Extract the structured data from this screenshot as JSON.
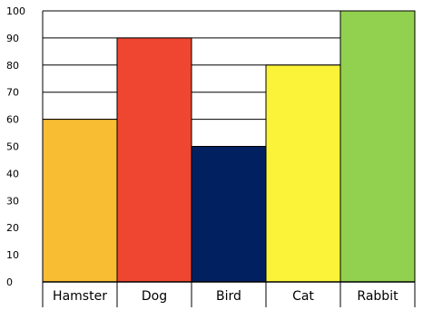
{
  "chart_data": {
    "type": "bar",
    "categories": [
      "Hamster",
      "Dog",
      "Bird",
      "Cat",
      "Rabbit"
    ],
    "values": [
      60,
      90,
      50,
      80,
      100
    ],
    "colors": [
      "#f9bd33",
      "#ef4631",
      "#002060",
      "#fbf339",
      "#92d050"
    ],
    "title": "",
    "xlabel": "",
    "ylabel": "",
    "ylim": [
      0,
      100
    ],
    "yticks": [
      0,
      10,
      20,
      30,
      40,
      50,
      60,
      70,
      80,
      90,
      100
    ],
    "grid": true,
    "legend": "none"
  }
}
